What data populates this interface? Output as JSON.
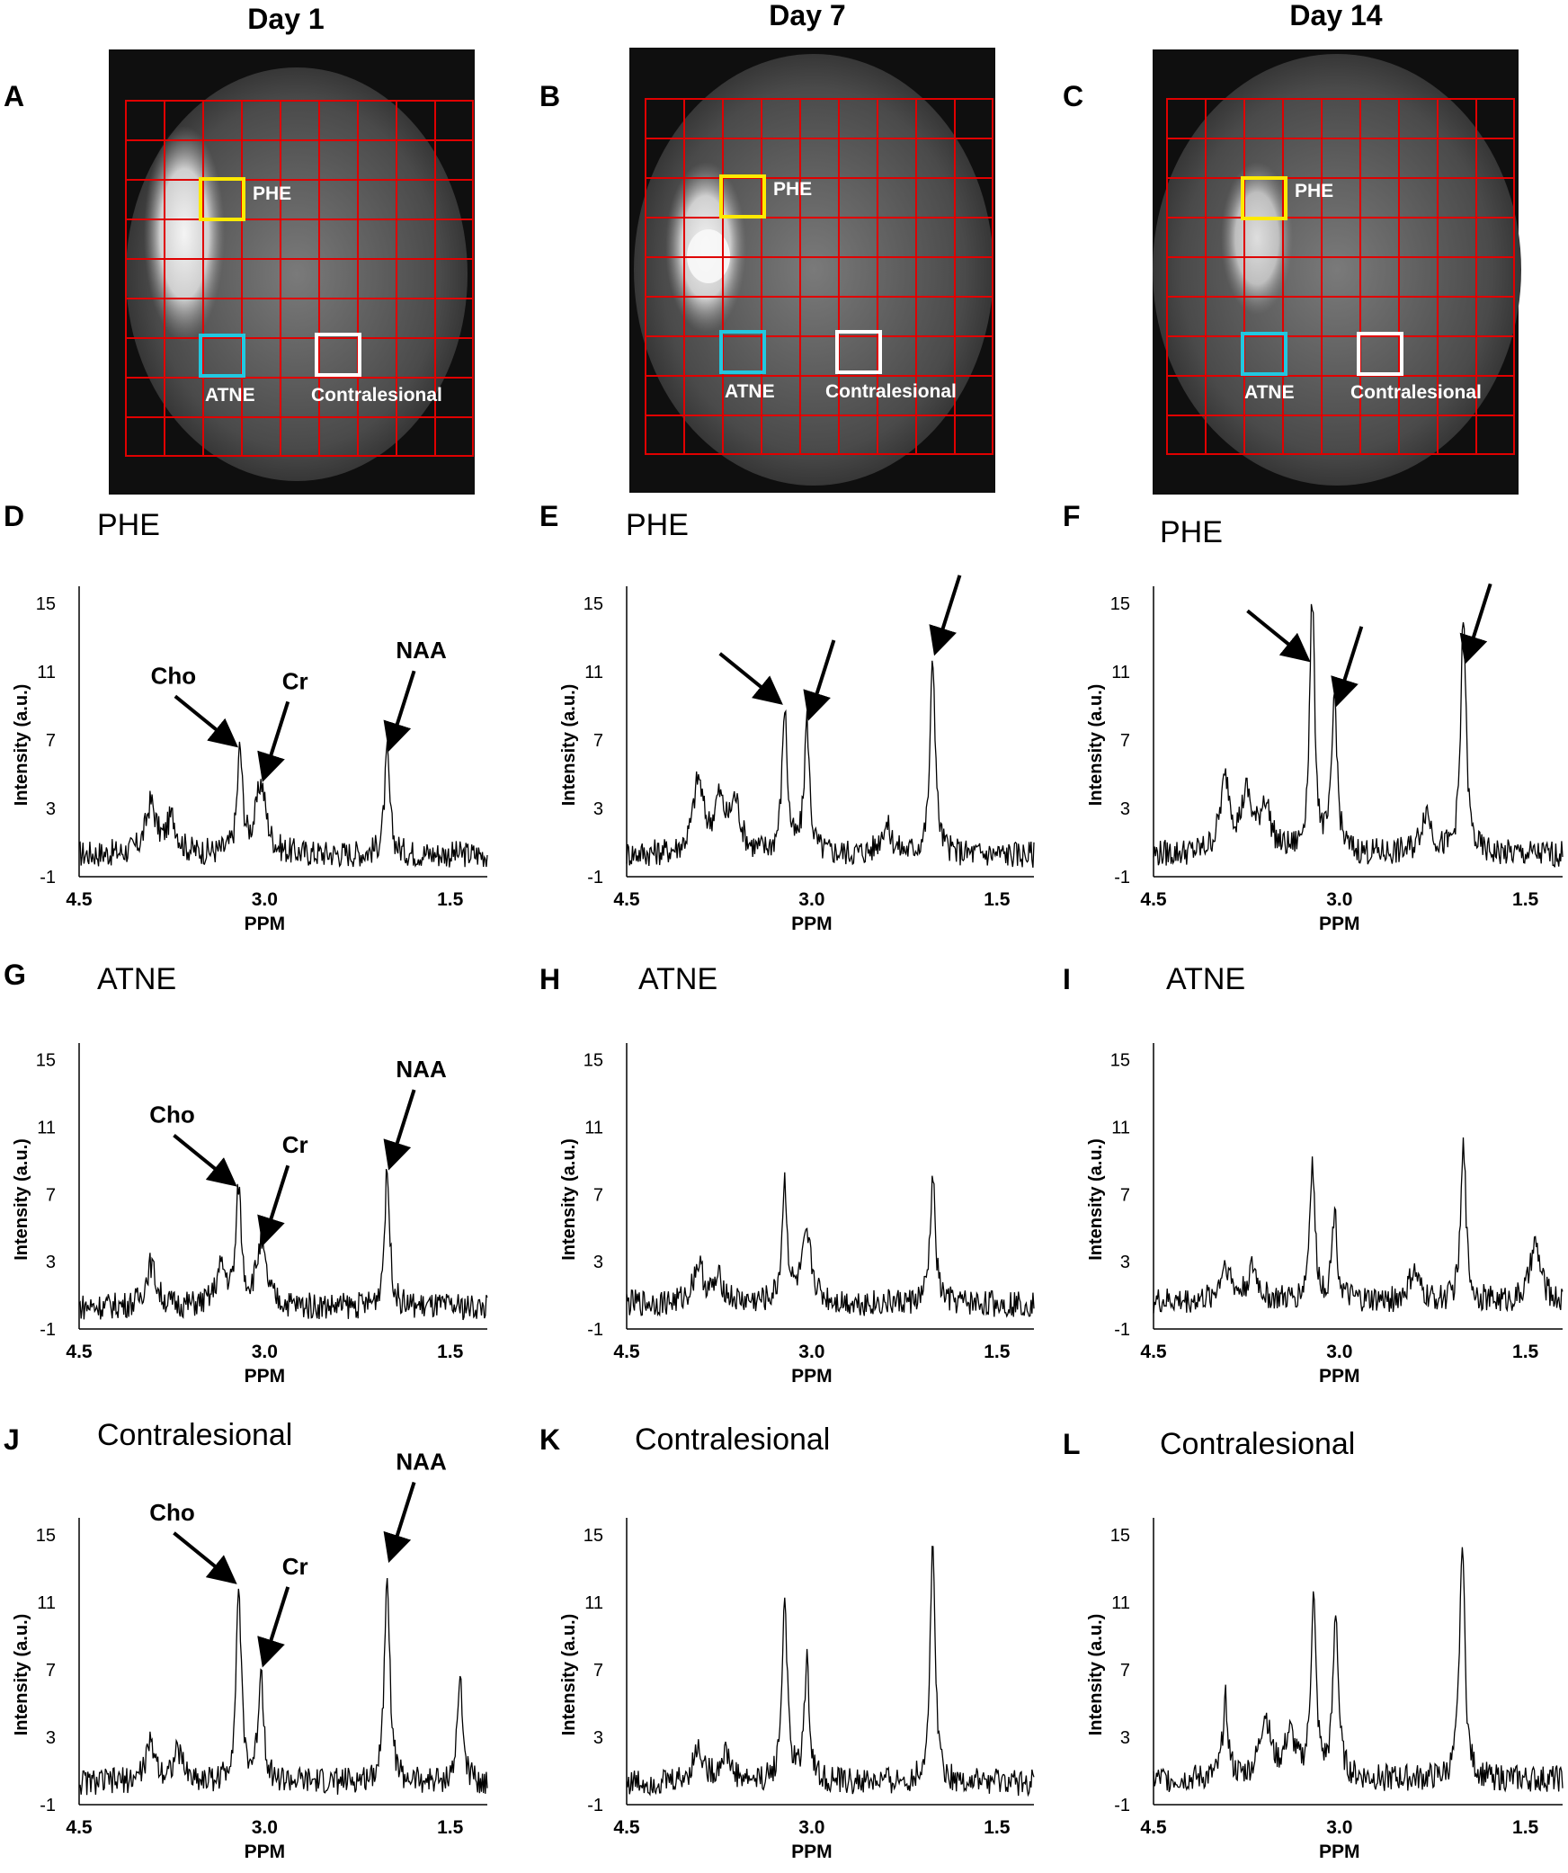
{
  "figure": {
    "days": [
      "Day 1",
      "Day 7",
      "Day 14"
    ],
    "mri_panels": [
      {
        "letter": "A",
        "day": "Day 1",
        "boxes": [
          {
            "id": "phe",
            "label": "PHE",
            "color": "#ffea00"
          },
          {
            "id": "atne",
            "label": "ATNE",
            "color": "#22c8e0"
          },
          {
            "id": "contra",
            "label": "Contralesional",
            "color": "#ffffff"
          }
        ]
      },
      {
        "letter": "B",
        "day": "Day 7",
        "boxes": [
          {
            "id": "phe",
            "label": "PHE",
            "color": "#ffea00"
          },
          {
            "id": "atne",
            "label": "ATNE",
            "color": "#22c8e0"
          },
          {
            "id": "contra",
            "label": "Contralesional",
            "color": "#ffffff"
          }
        ]
      },
      {
        "letter": "C",
        "day": "Day 14",
        "boxes": [
          {
            "id": "phe",
            "label": "PHE",
            "color": "#ffea00"
          },
          {
            "id": "atne",
            "label": "ATNE",
            "color": "#22c8e0"
          },
          {
            "id": "contra",
            "label": "Contralesional",
            "color": "#ffffff"
          }
        ]
      }
    ],
    "grid_color": "#e00000"
  },
  "chart_data": [
    {
      "type": "line",
      "letter": "D",
      "title": "PHE",
      "region": "PHE",
      "day": "Day 1",
      "xlabel": "PPM",
      "ylabel": "Intensity (a.u.)",
      "xlim": [
        4.5,
        1.2
      ],
      "ylim": [
        -1,
        16
      ],
      "xticks": [
        "4.5",
        "3.0",
        "1.5"
      ],
      "yticks": [
        "15",
        "11",
        "7",
        "3",
        "-1"
      ],
      "baseline": 0.3,
      "peaks": [
        {
          "ppm": 3.2,
          "height": 6.3
        },
        {
          "ppm": 3.03,
          "height": 4.4
        },
        {
          "ppm": 2.01,
          "height": 6.2
        },
        {
          "ppm": 3.92,
          "height": 3.2
        },
        {
          "ppm": 3.75,
          "height": 2.3
        }
      ],
      "annotations": [
        {
          "text": "Cho",
          "ppm": 3.2,
          "y": 6.3
        },
        {
          "text": "Cr",
          "ppm": 3.03,
          "y": 4.4
        },
        {
          "text": "NAA",
          "ppm": 2.01,
          "y": 6.2
        }
      ]
    },
    {
      "type": "line",
      "letter": "E",
      "title": "PHE",
      "region": "PHE",
      "day": "Day 7",
      "xlabel": "PPM",
      "ylabel": "Intensity (a.u.)",
      "xlim": [
        4.5,
        1.2
      ],
      "ylim": [
        -1,
        16
      ],
      "xticks": [
        "4.5",
        "3.0",
        "1.5"
      ],
      "yticks": [
        "15",
        "11",
        "7",
        "3",
        "-1"
      ],
      "baseline": 0.3,
      "peaks": [
        {
          "ppm": 3.22,
          "height": 8.8
        },
        {
          "ppm": 3.04,
          "height": 8.0
        },
        {
          "ppm": 2.02,
          "height": 11.8
        },
        {
          "ppm": 3.92,
          "height": 4.5
        },
        {
          "ppm": 3.75,
          "height": 3.2
        },
        {
          "ppm": 3.62,
          "height": 3.2
        },
        {
          "ppm": 2.4,
          "height": 2.0
        }
      ],
      "annotations": [
        {
          "text": "",
          "ppm": 3.22,
          "y": 8.8
        },
        {
          "text": "",
          "ppm": 3.04,
          "y": 8.0
        },
        {
          "text": "",
          "ppm": 2.02,
          "y": 11.8
        }
      ]
    },
    {
      "type": "line",
      "letter": "F",
      "title": "PHE",
      "region": "PHE",
      "day": "Day 14",
      "xlabel": "PPM",
      "ylabel": "Intensity (a.u.)",
      "xlim": [
        4.5,
        1.2
      ],
      "ylim": [
        -1,
        16
      ],
      "xticks": [
        "4.5",
        "3.0",
        "1.5"
      ],
      "yticks": [
        "15",
        "11",
        "7",
        "3",
        "-1"
      ],
      "baseline": 0.3,
      "peaks": [
        {
          "ppm": 3.22,
          "height": 15.0
        },
        {
          "ppm": 3.04,
          "height": 9.5
        },
        {
          "ppm": 2.0,
          "height": 14.3
        },
        {
          "ppm": 3.92,
          "height": 4.5
        },
        {
          "ppm": 3.75,
          "height": 3.5
        },
        {
          "ppm": 3.6,
          "height": 3.2
        },
        {
          "ppm": 2.3,
          "height": 2.8
        }
      ],
      "annotations": [
        {
          "text": "",
          "ppm": 3.22,
          "y": 11.3
        },
        {
          "text": "",
          "ppm": 3.04,
          "y": 8.8
        },
        {
          "text": "",
          "ppm": 2.0,
          "y": 11.3
        }
      ]
    },
    {
      "type": "line",
      "letter": "G",
      "title": "ATNE",
      "region": "ATNE",
      "day": "Day 1",
      "xlabel": "PPM",
      "ylabel": "Intensity (a.u.)",
      "xlim": [
        4.5,
        1.2
      ],
      "ylim": [
        -1,
        16
      ],
      "xticks": [
        "4.5",
        "3.0",
        "1.5"
      ],
      "yticks": [
        "15",
        "11",
        "7",
        "3",
        "-1"
      ],
      "baseline": 0.3,
      "peaks": [
        {
          "ppm": 3.21,
          "height": 7.2
        },
        {
          "ppm": 3.03,
          "height": 3.8
        },
        {
          "ppm": 2.01,
          "height": 8.3
        },
        {
          "ppm": 3.92,
          "height": 2.8
        },
        {
          "ppm": 3.35,
          "height": 2.5
        }
      ],
      "annotations": [
        {
          "text": "Cho",
          "ppm": 3.21,
          "y": 7.2
        },
        {
          "text": "Cr",
          "ppm": 3.03,
          "y": 3.8
        },
        {
          "text": "NAA",
          "ppm": 2.01,
          "y": 8.3
        }
      ]
    },
    {
      "type": "line",
      "letter": "H",
      "title": "ATNE",
      "region": "ATNE",
      "day": "Day 7",
      "xlabel": "PPM",
      "ylabel": "Intensity (a.u.)",
      "xlim": [
        4.5,
        1.2
      ],
      "ylim": [
        -1,
        16
      ],
      "xticks": [
        "4.5",
        "3.0",
        "1.5"
      ],
      "yticks": [
        "15",
        "11",
        "7",
        "3",
        "-1"
      ],
      "baseline": 0.5,
      "peaks": [
        {
          "ppm": 3.22,
          "height": 7.5
        },
        {
          "ppm": 3.04,
          "height": 4.2
        },
        {
          "ppm": 2.02,
          "height": 8.0
        },
        {
          "ppm": 3.92,
          "height": 2.8
        },
        {
          "ppm": 3.75,
          "height": 1.8
        }
      ],
      "annotations": []
    },
    {
      "type": "line",
      "letter": "I",
      "title": "ATNE",
      "region": "ATNE",
      "day": "Day 14",
      "xlabel": "PPM",
      "ylabel": "Intensity (a.u.)",
      "xlim": [
        4.5,
        1.2
      ],
      "ylim": [
        -1,
        16
      ],
      "xticks": [
        "4.5",
        "3.0",
        "1.5"
      ],
      "yticks": [
        "15",
        "11",
        "7",
        "3",
        "-1"
      ],
      "baseline": 0.6,
      "peaks": [
        {
          "ppm": 3.22,
          "height": 8.8
        },
        {
          "ppm": 3.04,
          "height": 5.9
        },
        {
          "ppm": 2.0,
          "height": 9.8
        },
        {
          "ppm": 3.92,
          "height": 2.8
        },
        {
          "ppm": 3.7,
          "height": 2.5
        },
        {
          "ppm": 2.4,
          "height": 2.3
        },
        {
          "ppm": 1.42,
          "height": 4.0
        }
      ],
      "annotations": []
    },
    {
      "type": "line",
      "letter": "J",
      "title": "Contralesional",
      "region": "Contralesional",
      "day": "Day 1",
      "xlabel": "PPM",
      "ylabel": "Intensity (a.u.)",
      "xlim": [
        4.5,
        1.2
      ],
      "ylim": [
        -1,
        16
      ],
      "xticks": [
        "4.5",
        "3.0",
        "1.5"
      ],
      "yticks": [
        "15",
        "11",
        "7",
        "3",
        "-1"
      ],
      "baseline": 0.3,
      "peaks": [
        {
          "ppm": 3.21,
          "height": 11.8
        },
        {
          "ppm": 3.03,
          "height": 7.0
        },
        {
          "ppm": 2.01,
          "height": 13.2
        },
        {
          "ppm": 3.92,
          "height": 2.5
        },
        {
          "ppm": 3.7,
          "height": 2.0
        },
        {
          "ppm": 1.42,
          "height": 6.5
        }
      ],
      "annotations": [
        {
          "text": "Cho",
          "ppm": 3.21,
          "y": 11.8
        },
        {
          "text": "Cr",
          "ppm": 3.03,
          "y": 7.0
        },
        {
          "text": "NAA",
          "ppm": 2.01,
          "y": 13.2
        }
      ]
    },
    {
      "type": "line",
      "letter": "K",
      "title": "Contralesional",
      "region": "Contralesional",
      "day": "Day 7",
      "xlabel": "PPM",
      "ylabel": "Intensity (a.u.)",
      "xlim": [
        4.5,
        1.2
      ],
      "ylim": [
        -1,
        16
      ],
      "xticks": [
        "4.5",
        "3.0",
        "1.5"
      ],
      "yticks": [
        "15",
        "11",
        "7",
        "3",
        "-1"
      ],
      "baseline": 0.3,
      "peaks": [
        {
          "ppm": 3.22,
          "height": 11.2
        },
        {
          "ppm": 3.04,
          "height": 7.3
        },
        {
          "ppm": 2.02,
          "height": 14.3
        },
        {
          "ppm": 3.92,
          "height": 2.3
        },
        {
          "ppm": 3.7,
          "height": 2.0
        }
      ],
      "annotations": []
    },
    {
      "type": "line",
      "letter": "L",
      "title": "Contralesional",
      "region": "Contralesional",
      "day": "Day 14",
      "xlabel": "PPM",
      "ylabel": "Intensity (a.u.)",
      "xlim": [
        4.5,
        1.2
      ],
      "ylim": [
        -1,
        16
      ],
      "xticks": [
        "4.5",
        "3.0",
        "1.5"
      ],
      "yticks": [
        "15",
        "11",
        "7",
        "3",
        "-1"
      ],
      "baseline": 0.5,
      "peaks": [
        {
          "ppm": 3.21,
          "height": 11.0
        },
        {
          "ppm": 3.03,
          "height": 10.3
        },
        {
          "ppm": 2.01,
          "height": 15.0
        },
        {
          "ppm": 3.92,
          "height": 5.2
        },
        {
          "ppm": 3.6,
          "height": 4.2
        },
        {
          "ppm": 3.4,
          "height": 3.0
        }
      ],
      "annotations": []
    }
  ]
}
